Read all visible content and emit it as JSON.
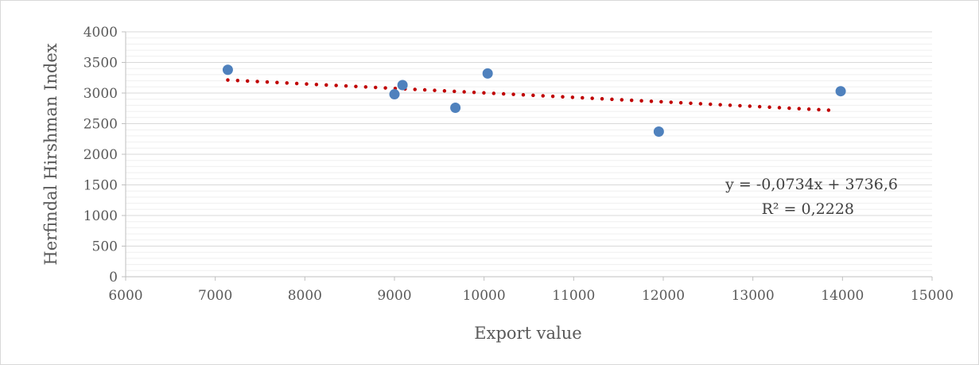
{
  "chart_data": {
    "type": "scatter",
    "xlabel": "Export value",
    "ylabel": "Herfindal Hirshman Index",
    "xlim": [
      6000,
      15000
    ],
    "ylim": [
      0,
      4000
    ],
    "xticks": [
      6000,
      7000,
      8000,
      9000,
      10000,
      11000,
      12000,
      13000,
      14000,
      15000
    ],
    "yticks": [
      0,
      500,
      1000,
      1500,
      2000,
      2500,
      3000,
      3500,
      4000
    ],
    "grid": true,
    "points": [
      {
        "x": 7140,
        "y": 3380
      },
      {
        "x": 9000,
        "y": 2980
      },
      {
        "x": 9090,
        "y": 3130
      },
      {
        "x": 9680,
        "y": 2760
      },
      {
        "x": 10040,
        "y": 3320
      },
      {
        "x": 11950,
        "y": 2370
      },
      {
        "x": 13980,
        "y": 3030
      }
    ],
    "trendline": {
      "slope": -0.0734,
      "intercept": 3736.6,
      "x_range": [
        7140,
        13850
      ],
      "equation": "y = -0,0734x + 3736,6",
      "r_squared": "R² = 0,2228"
    },
    "colors": {
      "points": "#4f81bd",
      "trendline": "#c00000",
      "grid": "#d9d9d9",
      "axis": "#bfbfbf"
    }
  }
}
